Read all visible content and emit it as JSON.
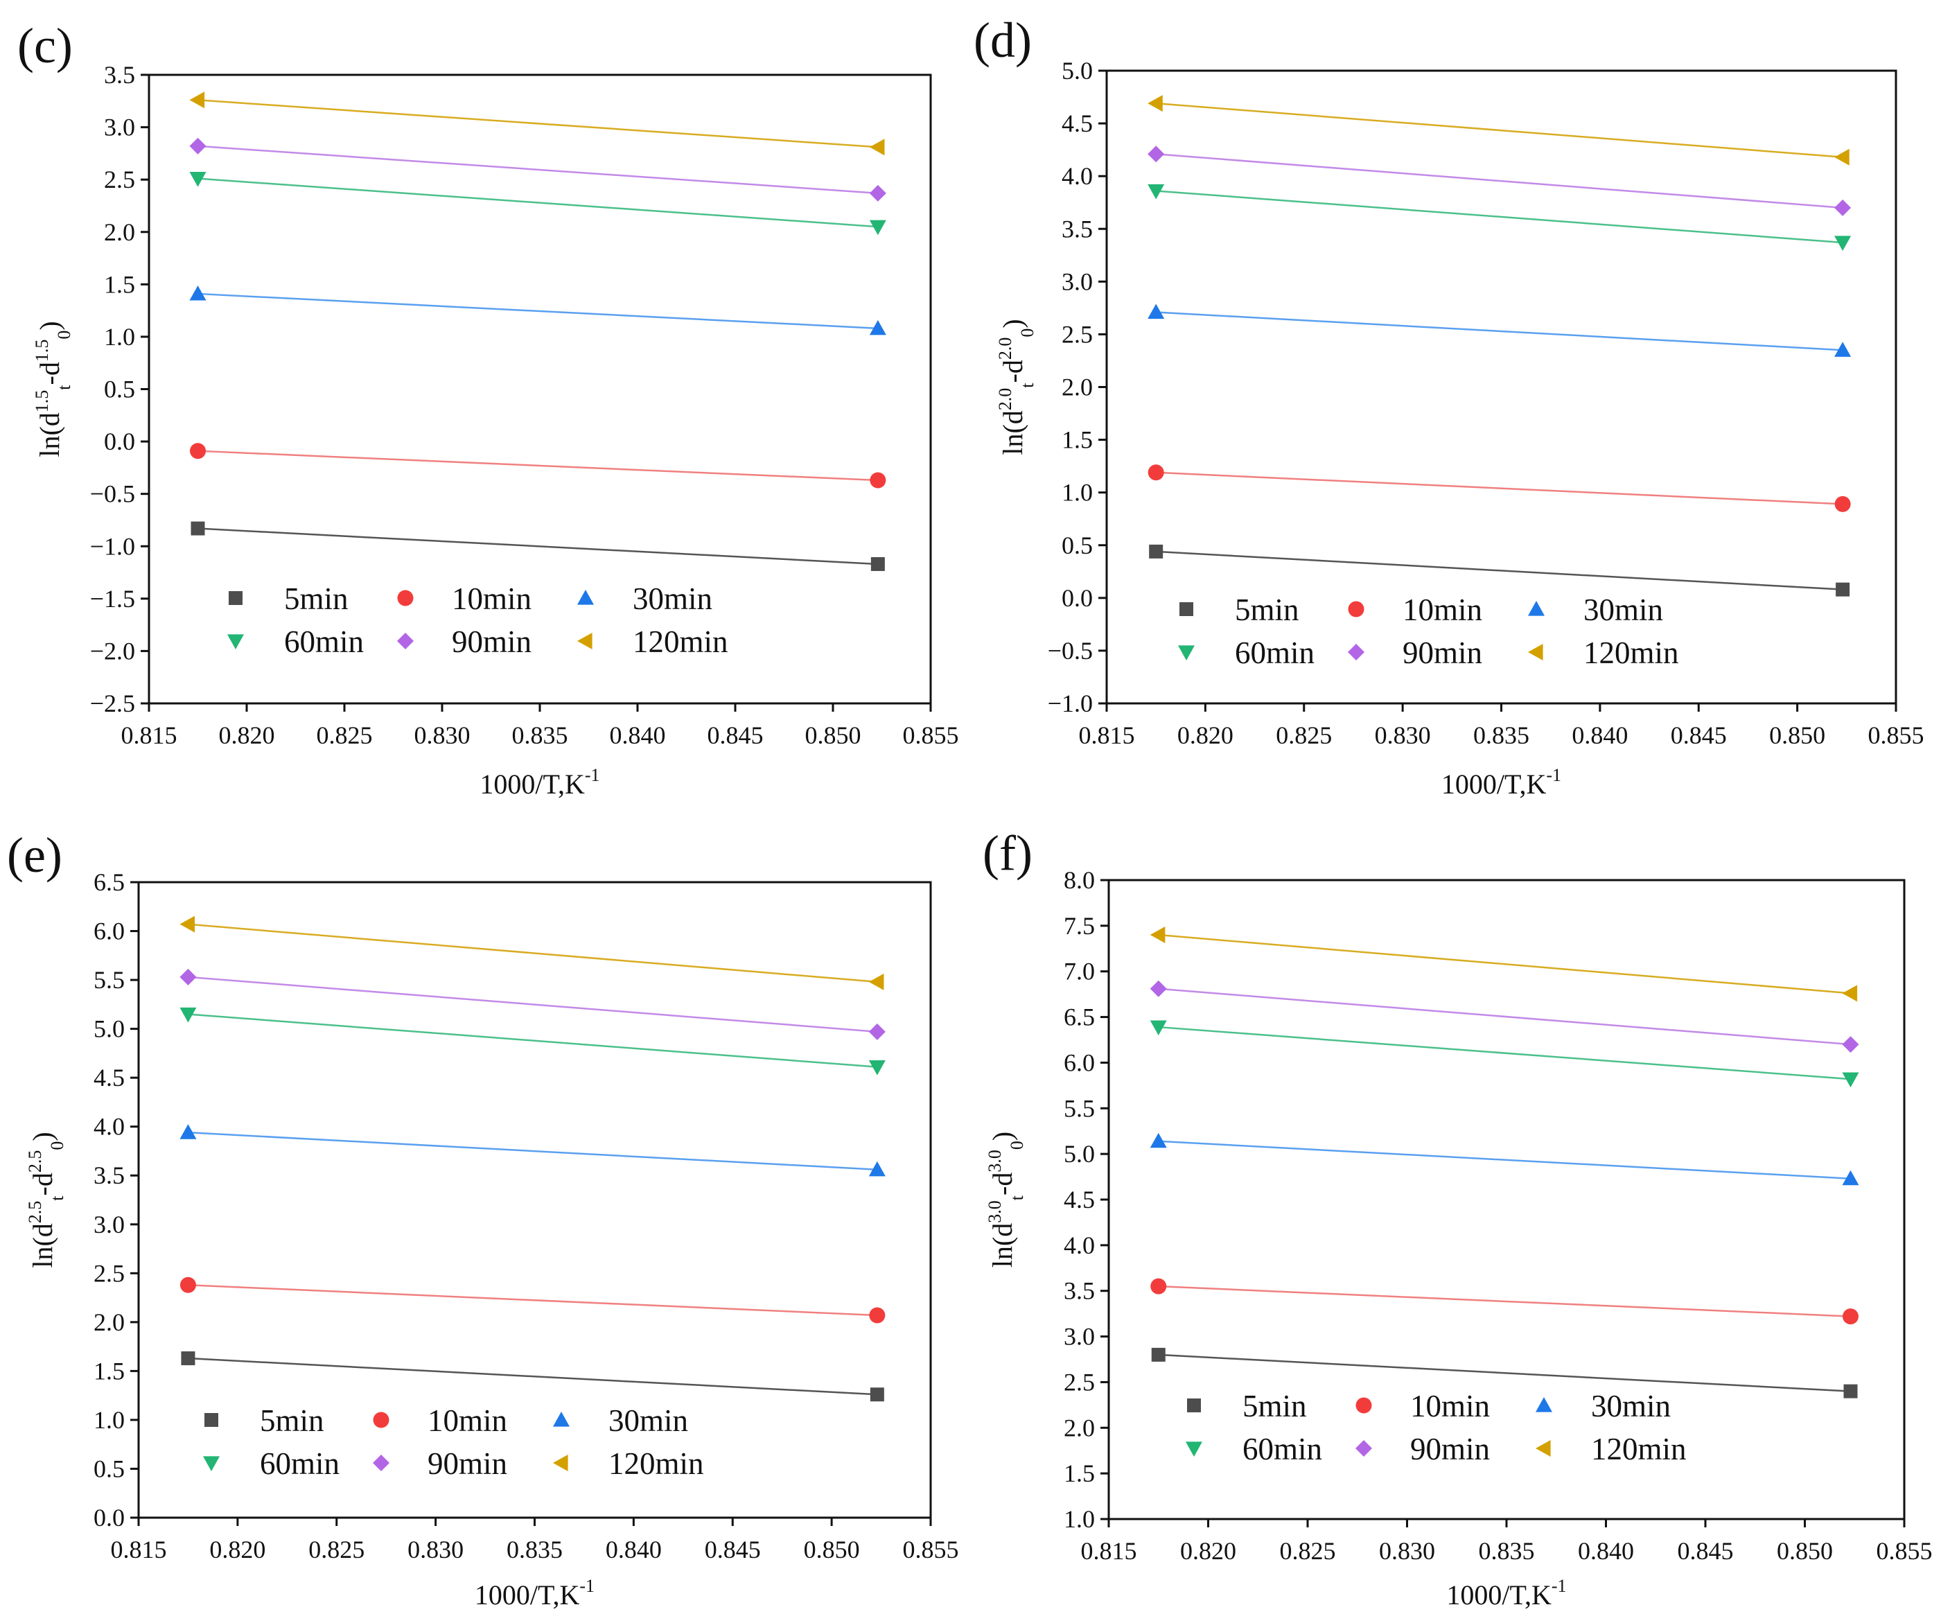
{
  "chart_data": [
    {
      "type": "scatter",
      "panel": "(c)",
      "ylabel": {
        "pre": "ln(d",
        "t": "t",
        "e1": "1.5",
        "mid": "-d",
        "zero": "0",
        "e2": "1.5",
        "post": ")"
      },
      "xlabel": {
        "base": "1000/T,K",
        "sup": "-1"
      },
      "xlim": [
        0.815,
        0.855
      ],
      "ylim": [
        -2.5,
        3.5
      ],
      "yticks": [
        "−2.5",
        "−2.0",
        "−1.5",
        "−1.0",
        "−0.5",
        "0.0",
        "0.5",
        "1.0",
        "1.5",
        "2.0",
        "2.5",
        "3.0",
        "3.5"
      ],
      "xticks": [
        "0.815",
        "0.820",
        "0.825",
        "0.830",
        "0.835",
        "0.840",
        "0.845",
        "0.850",
        "0.855"
      ],
      "legend_position": "bottom-left",
      "series": [
        {
          "name": "5min",
          "x": [
            0.8175,
            0.8523
          ],
          "y": [
            -0.83,
            -1.17
          ]
        },
        {
          "name": "10min",
          "x": [
            0.8175,
            0.8523
          ],
          "y": [
            -0.09,
            -0.37
          ]
        },
        {
          "name": "30min",
          "x": [
            0.8175,
            0.8523
          ],
          "y": [
            1.41,
            1.08
          ]
        },
        {
          "name": "60min",
          "x": [
            0.8175,
            0.8523
          ],
          "y": [
            2.51,
            2.05
          ]
        },
        {
          "name": "90min",
          "x": [
            0.8175,
            0.8523
          ],
          "y": [
            2.82,
            2.37
          ]
        },
        {
          "name": "120min",
          "x": [
            0.8175,
            0.8523
          ],
          "y": [
            3.26,
            2.81
          ]
        }
      ]
    },
    {
      "type": "scatter",
      "panel": "(d)",
      "ylabel": {
        "pre": "ln(d",
        "t": "t",
        "e1": "2.0",
        "mid": "-d",
        "zero": "0",
        "e2": "2.0",
        "post": ")"
      },
      "xlabel": {
        "base": "1000/T,K",
        "sup": "-1"
      },
      "xlim": [
        0.815,
        0.855
      ],
      "ylim": [
        -1.0,
        5.0
      ],
      "yticks": [
        "−1.0",
        "−0.5",
        "0.0",
        "0.5",
        "1.0",
        "1.5",
        "2.0",
        "2.5",
        "3.0",
        "3.5",
        "4.0",
        "4.5",
        "5.0"
      ],
      "xticks": [
        "0.815",
        "0.820",
        "0.825",
        "0.830",
        "0.835",
        "0.840",
        "0.845",
        "0.850",
        "0.855"
      ],
      "legend_position": "bottom-left",
      "series": [
        {
          "name": "5min",
          "x": [
            0.8175,
            0.8523
          ],
          "y": [
            0.44,
            0.08
          ]
        },
        {
          "name": "10min",
          "x": [
            0.8175,
            0.8523
          ],
          "y": [
            1.19,
            0.89
          ]
        },
        {
          "name": "30min",
          "x": [
            0.8175,
            0.8523
          ],
          "y": [
            2.71,
            2.35
          ]
        },
        {
          "name": "60min",
          "x": [
            0.8175,
            0.8523
          ],
          "y": [
            3.86,
            3.37
          ]
        },
        {
          "name": "90min",
          "x": [
            0.8175,
            0.8523
          ],
          "y": [
            4.21,
            3.7
          ]
        },
        {
          "name": "120min",
          "x": [
            0.8175,
            0.8523
          ],
          "y": [
            4.69,
            4.18
          ]
        }
      ]
    },
    {
      "type": "scatter",
      "panel": "(e)",
      "ylabel": {
        "pre": "ln(d",
        "t": "t",
        "e1": "2.5",
        "mid": "-d",
        "zero": "0",
        "e2": "2.5",
        "post": ")"
      },
      "xlabel": {
        "base": "1000/T,K",
        "sup": "-1"
      },
      "xlim": [
        0.815,
        0.855
      ],
      "ylim": [
        0.0,
        6.5
      ],
      "yticks": [
        "0.0",
        "0.5",
        "1.0",
        "1.5",
        "2.0",
        "2.5",
        "3.0",
        "3.5",
        "4.0",
        "4.5",
        "5.0",
        "5.5",
        "6.0",
        "6.5"
      ],
      "xticks": [
        "0.815",
        "0.820",
        "0.825",
        "0.830",
        "0.835",
        "0.840",
        "0.845",
        "0.850",
        "0.855"
      ],
      "legend_position": "bottom-left",
      "series": [
        {
          "name": "5min",
          "x": [
            0.8175,
            0.8523
          ],
          "y": [
            1.63,
            1.26
          ]
        },
        {
          "name": "10min",
          "x": [
            0.8175,
            0.8523
          ],
          "y": [
            2.38,
            2.07
          ]
        },
        {
          "name": "30min",
          "x": [
            0.8175,
            0.8523
          ],
          "y": [
            3.94,
            3.56
          ]
        },
        {
          "name": "60min",
          "x": [
            0.8175,
            0.8523
          ],
          "y": [
            5.15,
            4.61
          ]
        },
        {
          "name": "90min",
          "x": [
            0.8175,
            0.8523
          ],
          "y": [
            5.53,
            4.97
          ]
        },
        {
          "name": "120min",
          "x": [
            0.8175,
            0.8523
          ],
          "y": [
            6.07,
            5.48
          ]
        }
      ]
    },
    {
      "type": "scatter",
      "panel": "(f)",
      "ylabel": {
        "pre": "ln(d",
        "t": "t",
        "e1": "3.0",
        "mid": "-d",
        "zero": "0",
        "e2": "3.0",
        "post": ")"
      },
      "xlabel": {
        "base": "1000/T,K",
        "sup": "-1"
      },
      "xlim": [
        0.815,
        0.855
      ],
      "ylim": [
        1.0,
        8.0
      ],
      "yticks": [
        "1.0",
        "1.5",
        "2.0",
        "2.5",
        "3.0",
        "3.5",
        "4.0",
        "4.5",
        "5.0",
        "5.5",
        "6.0",
        "6.5",
        "7.0",
        "7.5",
        "8.0"
      ],
      "xticks": [
        "0.815",
        "0.820",
        "0.825",
        "0.830",
        "0.835",
        "0.840",
        "0.845",
        "0.850",
        "0.855"
      ],
      "legend_position": "bottom-left",
      "series": [
        {
          "name": "5min",
          "x": [
            0.8175,
            0.8523
          ],
          "y": [
            2.8,
            2.4
          ]
        },
        {
          "name": "10min",
          "x": [
            0.8175,
            0.8523
          ],
          "y": [
            3.55,
            3.22
          ]
        },
        {
          "name": "30min",
          "x": [
            0.8175,
            0.8523
          ],
          "y": [
            5.14,
            4.73
          ]
        },
        {
          "name": "60min",
          "x": [
            0.8175,
            0.8523
          ],
          "y": [
            6.39,
            5.82
          ]
        },
        {
          "name": "90min",
          "x": [
            0.8175,
            0.8523
          ],
          "y": [
            6.81,
            6.2
          ]
        },
        {
          "name": "120min",
          "x": [
            0.8175,
            0.8523
          ],
          "y": [
            7.4,
            6.76
          ]
        }
      ]
    }
  ],
  "styles": {
    "series": [
      {
        "marker": "square",
        "color": "#4d4d4d",
        "line": "#555555"
      },
      {
        "marker": "circle",
        "color": "#f23c3c",
        "line": "#f08080"
      },
      {
        "marker": "triangle-up",
        "color": "#1e78e8",
        "line": "#5aa0f0"
      },
      {
        "marker": "triangle-down",
        "color": "#22b573",
        "line": "#4cc08a"
      },
      {
        "marker": "diamond",
        "color": "#b266e6",
        "line": "#c28ae8"
      },
      {
        "marker": "triangle-left",
        "color": "#d4a000",
        "line": "#d8ac22"
      }
    ]
  }
}
